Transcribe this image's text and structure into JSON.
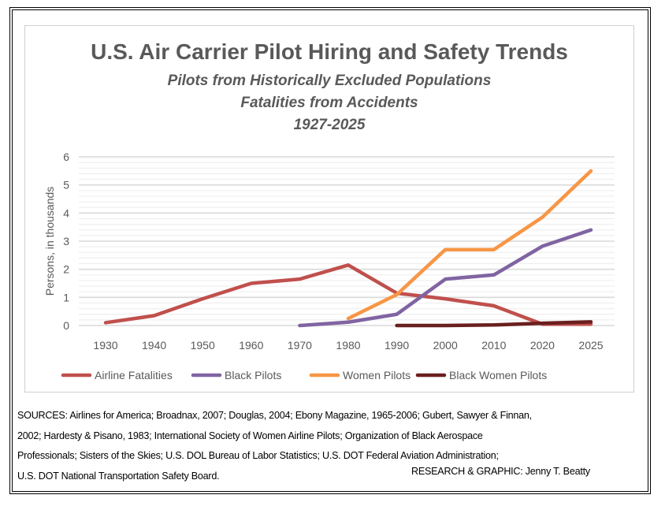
{
  "chart_data": {
    "type": "line",
    "title": "U.S. Air Carrier Pilot Hiring and Safety Trends",
    "subtitle": [
      "Pilots from Historically Excluded Populations",
      "Fatalities from Accidents",
      "1927-2025"
    ],
    "xlabel": "",
    "ylabel": "Persons, in thousands",
    "ylim": [
      0,
      6
    ],
    "yticks": [
      "0",
      "1",
      "2",
      "3",
      "4",
      "5",
      "6"
    ],
    "categories": [
      "1930",
      "1940",
      "1950",
      "1960",
      "1970",
      "1980",
      "1990",
      "2000",
      "2010",
      "2020",
      "2025"
    ],
    "grid": true,
    "legend_position": "bottom",
    "series": [
      {
        "name": "Airline Fatalities",
        "color": "#c0504d",
        "values": [
          0.1,
          0.35,
          0.95,
          1.5,
          1.65,
          2.15,
          1.15,
          0.95,
          0.7,
          0.05,
          0.05
        ]
      },
      {
        "name": "Black Pilots",
        "color": "#8064a2",
        "values": [
          null,
          null,
          null,
          null,
          0.0,
          0.12,
          0.4,
          1.65,
          1.8,
          2.82,
          3.4
        ]
      },
      {
        "name": "Women Pilots",
        "color": "#f79646",
        "values": [
          null,
          null,
          null,
          null,
          null,
          0.25,
          1.1,
          2.7,
          2.7,
          3.85,
          5.5
        ]
      },
      {
        "name": "Black Women Pilots",
        "color": "#6b1f1f",
        "values": [
          null,
          null,
          null,
          null,
          null,
          null,
          0.0,
          0.0,
          0.02,
          0.08,
          0.13
        ]
      }
    ]
  },
  "sources": [
    "SOURCES: Airlines for America; Broadnax, 2007; Douglas, 2004; Ebony Magazine, 1965-2006; Gubert, Sawyer & Finnan,",
    "2002; Hardesty & Pisano, 1983; International Society of Women Airline Pilots; Organization of Black Aerospace",
    "Professionals; Sisters of the Skies; U.S. DOL Bureau of Labor Statistics; U.S. DOT Federal Aviation Administration;",
    "U.S. DOT National Transportation Safety Board."
  ],
  "credit": "RESEARCH & GRAPHIC: Jenny T. Beatty"
}
